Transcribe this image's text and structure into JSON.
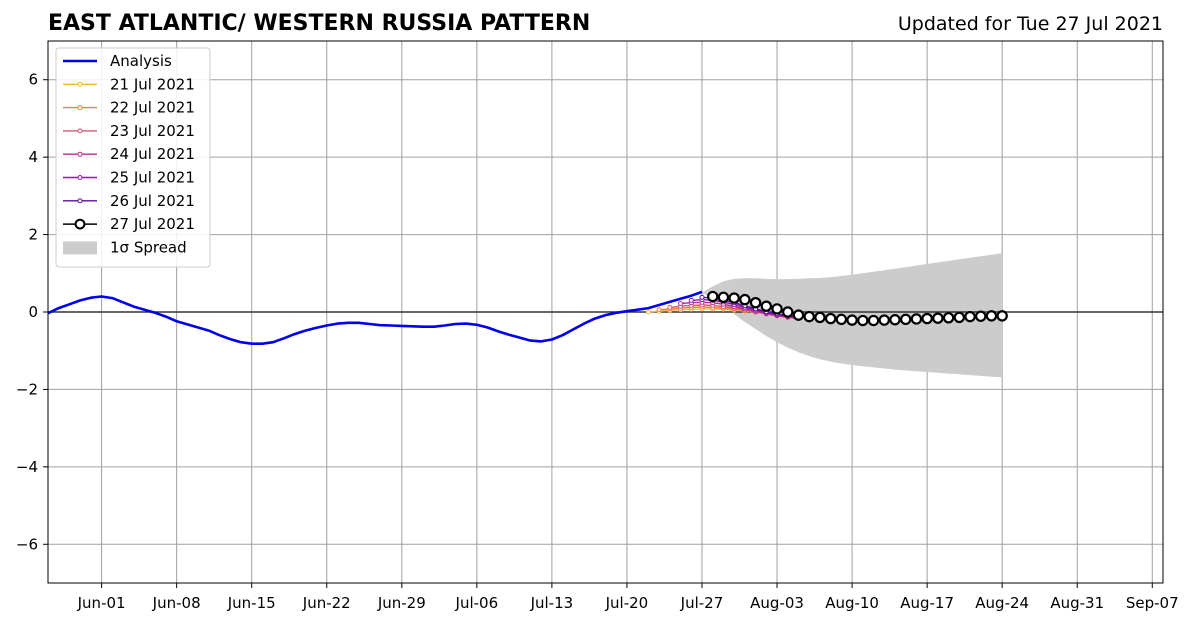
{
  "chart_data": {
    "type": "line",
    "title": "EAST ATLANTIC/ WESTERN RUSSIA PATTERN",
    "subtitle": "Updated for Tue 27 Jul 2021",
    "xlabel": "",
    "ylabel": "",
    "x_range": [
      "2021-05-27",
      "2021-09-08"
    ],
    "ylim": [
      -7,
      7
    ],
    "x_ticks": [
      {
        "date": "2021-06-01",
        "label": "Jun-01"
      },
      {
        "date": "2021-06-08",
        "label": "Jun-08"
      },
      {
        "date": "2021-06-15",
        "label": "Jun-15"
      },
      {
        "date": "2021-06-22",
        "label": "Jun-22"
      },
      {
        "date": "2021-06-29",
        "label": "Jun-29"
      },
      {
        "date": "2021-07-06",
        "label": "Jul-06"
      },
      {
        "date": "2021-07-13",
        "label": "Jul-13"
      },
      {
        "date": "2021-07-20",
        "label": "Jul-20"
      },
      {
        "date": "2021-07-27",
        "label": "Jul-27"
      },
      {
        "date": "2021-08-03",
        "label": "Aug-03"
      },
      {
        "date": "2021-08-10",
        "label": "Aug-10"
      },
      {
        "date": "2021-08-17",
        "label": "Aug-17"
      },
      {
        "date": "2021-08-24",
        "label": "Aug-24"
      },
      {
        "date": "2021-08-31",
        "label": "Aug-31"
      },
      {
        "date": "2021-09-07",
        "label": "Sep-07"
      }
    ],
    "y_ticks": [
      {
        "value": -6,
        "label": "−6"
      },
      {
        "value": -4,
        "label": "−4"
      },
      {
        "value": -2,
        "label": "−2"
      },
      {
        "value": 0,
        "label": "0"
      },
      {
        "value": 2,
        "label": "2"
      },
      {
        "value": 4,
        "label": "4"
      },
      {
        "value": 6,
        "label": "6"
      }
    ],
    "grid": true,
    "legend_position": "upper-left",
    "analysis": {
      "name": "Analysis",
      "color": "#0000ee",
      "dates": [
        "2021-05-27",
        "2021-05-28",
        "2021-05-29",
        "2021-05-30",
        "2021-05-31",
        "2021-06-01",
        "2021-06-02",
        "2021-06-03",
        "2021-06-04",
        "2021-06-05",
        "2021-06-06",
        "2021-06-07",
        "2021-06-08",
        "2021-06-09",
        "2021-06-10",
        "2021-06-11",
        "2021-06-12",
        "2021-06-13",
        "2021-06-14",
        "2021-06-15",
        "2021-06-16",
        "2021-06-17",
        "2021-06-18",
        "2021-06-19",
        "2021-06-20",
        "2021-06-21",
        "2021-06-22",
        "2021-06-23",
        "2021-06-24",
        "2021-06-25",
        "2021-06-26",
        "2021-06-27",
        "2021-06-28",
        "2021-06-29",
        "2021-06-30",
        "2021-07-01",
        "2021-07-02",
        "2021-07-03",
        "2021-07-04",
        "2021-07-05",
        "2021-07-06",
        "2021-07-07",
        "2021-07-08",
        "2021-07-09",
        "2021-07-10",
        "2021-07-11",
        "2021-07-12",
        "2021-07-13",
        "2021-07-14",
        "2021-07-15",
        "2021-07-16",
        "2021-07-17",
        "2021-07-18",
        "2021-07-19",
        "2021-07-20",
        "2021-07-21",
        "2021-07-22",
        "2021-07-23",
        "2021-07-24",
        "2021-07-25",
        "2021-07-26",
        "2021-07-27"
      ],
      "values": [
        -0.03,
        0.1,
        0.2,
        0.3,
        0.37,
        0.4,
        0.36,
        0.25,
        0.14,
        0.06,
        -0.02,
        -0.12,
        -0.24,
        -0.32,
        -0.4,
        -0.48,
        -0.6,
        -0.7,
        -0.78,
        -0.82,
        -0.82,
        -0.78,
        -0.68,
        -0.57,
        -0.48,
        -0.41,
        -0.35,
        -0.3,
        -0.28,
        -0.28,
        -0.31,
        -0.34,
        -0.35,
        -0.36,
        -0.37,
        -0.38,
        -0.38,
        -0.35,
        -0.31,
        -0.3,
        -0.33,
        -0.4,
        -0.5,
        -0.59,
        -0.66,
        -0.74,
        -0.76,
        -0.71,
        -0.6,
        -0.45,
        -0.3,
        -0.17,
        -0.08,
        -0.02,
        0.02,
        0.06,
        0.1,
        0.18,
        0.26,
        0.34,
        0.42,
        0.52
      ]
    },
    "forecasts": [
      {
        "name": "21 Jul 2021",
        "color": "#fcb040",
        "start": "2021-07-22",
        "values": [
          0.0,
          0.02,
          0.04,
          0.06,
          0.07,
          0.08,
          0.08,
          0.07,
          0.05,
          0.02,
          0.0,
          -0.03,
          -0.06,
          -0.09,
          -0.12
        ]
      },
      {
        "name": "22 Jul 2021",
        "color": "#f47e3c",
        "start": "2021-07-23",
        "values": [
          0.06,
          0.08,
          0.1,
          0.12,
          0.13,
          0.12,
          0.1,
          0.07,
          0.04,
          0.0,
          -0.04,
          -0.08,
          -0.11,
          -0.14
        ]
      },
      {
        "name": "23 Jul 2021",
        "color": "#dc5470",
        "start": "2021-07-24",
        "values": [
          0.12,
          0.15,
          0.17,
          0.18,
          0.17,
          0.14,
          0.1,
          0.05,
          0.0,
          -0.05,
          -0.1,
          -0.14,
          -0.17
        ]
      },
      {
        "name": "24 Jul 2021",
        "color": "#b72d8e",
        "start": "2021-07-25",
        "values": [
          0.22,
          0.24,
          0.25,
          0.24,
          0.2,
          0.14,
          0.08,
          0.02,
          -0.04,
          -0.09,
          -0.13,
          -0.16
        ]
      },
      {
        "name": "25 Jul 2021",
        "color": "#8e1aa8",
        "start": "2021-07-26",
        "values": [
          0.3,
          0.32,
          0.3,
          0.26,
          0.19,
          0.12,
          0.05,
          -0.02,
          -0.07,
          -0.11,
          -0.14
        ]
      },
      {
        "name": "26 Jul 2021",
        "color": "#5a0f9c",
        "start": "2021-07-27",
        "values": [
          0.38,
          0.36,
          0.31,
          0.24,
          0.16,
          0.08,
          0.01,
          -0.05,
          -0.09,
          -0.12
        ]
      }
    ],
    "latest_forecast": {
      "name": "27 Jul 2021",
      "color": "#000000",
      "start": "2021-07-28",
      "values": [
        0.4,
        0.38,
        0.36,
        0.32,
        0.24,
        0.15,
        0.08,
        0.0,
        -0.08,
        -0.12,
        -0.14,
        -0.17,
        -0.19,
        -0.21,
        -0.22,
        -0.22,
        -0.21,
        -0.2,
        -0.19,
        -0.18,
        -0.17,
        -0.16,
        -0.15,
        -0.14,
        -0.12,
        -0.11,
        -0.1,
        -0.1
      ]
    },
    "spread": {
      "name": "1σ Spread",
      "color": "#cccccc",
      "start": "2021-07-27",
      "upper": [
        0.5,
        0.66,
        0.79,
        0.86,
        0.87,
        0.87,
        0.86,
        0.85,
        0.85,
        0.86,
        0.87,
        0.88,
        0.9,
        0.93,
        0.96,
        1.0,
        1.04,
        1.08,
        1.12,
        1.16,
        1.2,
        1.24,
        1.28,
        1.32,
        1.36,
        1.4,
        1.44,
        1.48,
        1.52
      ],
      "lower": [
        0.5,
        0.34,
        0.14,
        -0.06,
        -0.26,
        -0.44,
        -0.62,
        -0.78,
        -0.92,
        -1.04,
        -1.14,
        -1.22,
        -1.28,
        -1.33,
        -1.37,
        -1.4,
        -1.43,
        -1.46,
        -1.49,
        -1.51,
        -1.53,
        -1.55,
        -1.57,
        -1.59,
        -1.61,
        -1.63,
        -1.65,
        -1.67,
        -1.69
      ]
    }
  }
}
